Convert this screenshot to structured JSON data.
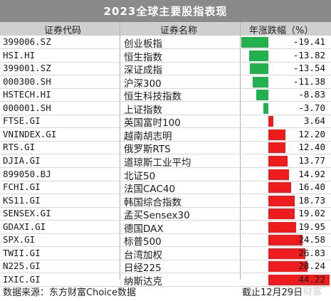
{
  "title": "2023全球主要股指表现",
  "headers": {
    "code": "证券代码",
    "name": "证券名称",
    "change": "年涨跌幅（%）"
  },
  "colors": {
    "up": "#ee1c1c",
    "down": "#22b14c",
    "title_bg": "#8a8a8a",
    "header_bg": "#cfcfcf"
  },
  "chart_data": {
    "type": "bar",
    "orientation": "horizontal",
    "xlabel": "年涨跌幅（%）",
    "zero_reference": 0,
    "rows": [
      {
        "code": "399006.SZ",
        "name": "创业板指",
        "value": -19.41,
        "label": "-19.41"
      },
      {
        "code": "HSI.HI",
        "name": "恒生指数",
        "value": -13.82,
        "label": "-13.82"
      },
      {
        "code": "399001.SZ",
        "name": "深证成指",
        "value": -13.54,
        "label": "-13.54"
      },
      {
        "code": "000300.SH",
        "name": "沪深300",
        "value": -11.38,
        "label": "-11.38"
      },
      {
        "code": "HSTECH.HI",
        "name": "恒生科技指数",
        "value": -8.83,
        "label": "-8.83"
      },
      {
        "code": "000001.SH",
        "name": "上证指数",
        "value": -3.7,
        "label": "-3.70"
      },
      {
        "code": "FTSE.GI",
        "name": "英国富时100",
        "value": 3.64,
        "label": "3.64"
      },
      {
        "code": "VNINDEX.GI",
        "name": "越南胡志明",
        "value": 12.2,
        "label": "12.20"
      },
      {
        "code": "RTS.GI",
        "name": "俄罗斯RTS",
        "value": 12.4,
        "label": "12.40"
      },
      {
        "code": "DJIA.GI",
        "name": "道琼斯工业平均",
        "value": 13.77,
        "label": "13.77"
      },
      {
        "code": "899050.BJ",
        "name": "北证50",
        "value": 14.92,
        "label": "14.92"
      },
      {
        "code": "FCHI.GI",
        "name": "法国CAC40",
        "value": 16.4,
        "label": "16.40"
      },
      {
        "code": "KS11.GI",
        "name": "韩国综合指数",
        "value": 18.73,
        "label": "18.73"
      },
      {
        "code": "SENSEX.GI",
        "name": "孟买Sensex30",
        "value": 19.02,
        "label": "19.02"
      },
      {
        "code": "GDAXI.GI",
        "name": "德国DAX",
        "value": 19.95,
        "label": "19.95"
      },
      {
        "code": "SPX.GI",
        "name": "标普500",
        "value": 24.58,
        "label": "24.58"
      },
      {
        "code": "TWII.GI",
        "name": "台湾加权",
        "value": 26.83,
        "label": "26.83"
      },
      {
        "code": "N225.GI",
        "name": "日经225",
        "value": 28.24,
        "label": "28.24"
      },
      {
        "code": "IXIC.GI",
        "name": "纳斯达克",
        "value": 44.22,
        "label": "44.22"
      }
    ]
  },
  "footer": {
    "source": "数据来源：东方财富Choice数据",
    "date": "截止12月29日",
    "watermark": "东方财富"
  }
}
